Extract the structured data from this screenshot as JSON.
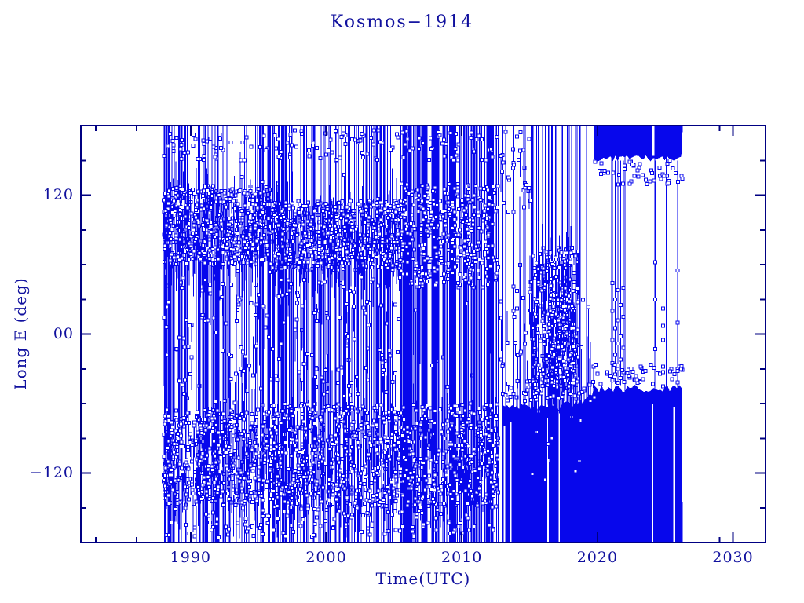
{
  "page": {
    "background": "#ffffff"
  },
  "chart_data": {
    "type": "scatter",
    "title": "Kosmos−1914",
    "xlabel": "Time(UTC)",
    "ylabel": "Long E (deg)",
    "marker": "open-square",
    "line_style": "vertical-wrap-lines",
    "xlim": [
      1981.9,
      2032.4
    ],
    "ylim": [
      -180,
      180
    ],
    "x_major_ticks": [
      1990,
      2000,
      2010,
      2020,
      2030
    ],
    "x_major_tick_labels": [
      "1990",
      "2000",
      "2010",
      "2020",
      "2030"
    ],
    "x_minor_ticks": [
      1983,
      1986,
      2029
    ],
    "y_major_ticks": [
      120,
      0,
      -120
    ],
    "y_major_tick_labels": [
      "120",
      "00",
      "−120"
    ],
    "y_minor_step": 30,
    "data_time_span_years": [
      1988.0,
      2026.3
    ],
    "colors": {
      "data": "#0707ec",
      "axis": "#000082",
      "text": "#10109e",
      "background": "#ffffff"
    },
    "seed": 1914,
    "structure": {
      "gaps": [
        [
          1993.0,
          1993.3
        ],
        [
          2004.95,
          2005.35
        ]
      ],
      "vline_eras": [
        {
          "years": [
            1988.0,
            1991.6
          ],
          "count": 55,
          "full_frac": 0.5,
          "up_start": [
            20,
            140
          ],
          "down_end": [
            -140,
            -20
          ]
        },
        {
          "years": [
            1991.6,
            1996.0
          ],
          "count": 45,
          "full_frac": 0.45,
          "up_start": [
            20,
            140
          ],
          "down_end": [
            -140,
            -20
          ]
        },
        {
          "years": [
            1996.0,
            2005.4
          ],
          "count": 110,
          "full_frac": 0.5,
          "up_start": [
            20,
            140
          ],
          "down_end": [
            -140,
            -20
          ]
        },
        {
          "years": [
            2005.4,
            2012.7
          ],
          "count": 160,
          "full_frac": 0.75,
          "up_start": [
            20,
            120
          ],
          "down_end": [
            -120,
            -15
          ]
        },
        {
          "years": [
            2012.7,
            2015.2
          ],
          "count": 9,
          "full_frac": 0.5,
          "up_start": [
            20,
            140
          ],
          "down_end": [
            -140,
            -20
          ]
        },
        {
          "years": [
            2015.2,
            2018.6
          ],
          "count": 40,
          "full_frac": 0.15,
          "up_start": [
            -40,
            70
          ],
          "down_end": [
            -140,
            -40
          ]
        },
        {
          "years": [
            2018.6,
            2019.75
          ],
          "count": 10,
          "full_frac": 0.2,
          "up_start": [
            -45,
            30
          ],
          "down_end": [
            -120,
            -50
          ]
        },
        {
          "years": [
            2019.75,
            2026.3
          ],
          "count": 6,
          "full_frac": 1.0,
          "up_start": [
            20,
            140
          ],
          "down_end": [
            -140,
            -20
          ]
        }
      ],
      "clusters": [
        {
          "years": [
            1988.0,
            1996.0
          ],
          "deg": [
            60,
            128
          ],
          "count": 600,
          "drop": true
        },
        {
          "years": [
            1988.0,
            1996.0
          ],
          "deg": [
            -148,
            -65
          ],
          "count": 500,
          "drop": true
        },
        {
          "years": [
            1988.0,
            1996.0
          ],
          "deg": [
            -60,
            55
          ],
          "count": 70,
          "drop": true
        },
        {
          "years": [
            1996.0,
            2005.4
          ],
          "deg": [
            55,
            115
          ],
          "count": 650,
          "drop": true
        },
        {
          "years": [
            1996.0,
            2005.4
          ],
          "deg": [
            -150,
            -60
          ],
          "count": 550,
          "drop": true
        },
        {
          "years": [
            1996.0,
            2005.4
          ],
          "deg": [
            -55,
            50
          ],
          "count": 90,
          "drop": true
        },
        {
          "years": [
            2005.4,
            2012.7
          ],
          "deg": [
            40,
            130
          ],
          "count": 420,
          "drop": false
        },
        {
          "years": [
            2005.4,
            2012.7
          ],
          "deg": [
            -150,
            -60
          ],
          "count": 380,
          "drop": true
        },
        {
          "years": [
            1988.0,
            2012.7
          ],
          "deg": [
            150,
            176
          ],
          "count": 150,
          "drop": false
        },
        {
          "years": [
            1988.0,
            2012.7
          ],
          "deg": [
            -176,
            -150
          ],
          "count": 120,
          "drop": false
        },
        {
          "years": [
            2012.8,
            2015.2
          ],
          "deg": [
            100,
            176
          ],
          "count": 28,
          "drop": true
        },
        {
          "years": [
            2012.8,
            2015.2
          ],
          "deg": [
            -30,
            55
          ],
          "count": 22,
          "drop": true
        },
        {
          "years": [
            2015.2,
            2018.6
          ],
          "deg": [
            -45,
            75
          ],
          "count": 270,
          "drop": true
        },
        {
          "years": [
            2016.4,
            2018.3
          ],
          "deg": [
            -42,
            35
          ],
          "count": 160,
          "drop": true
        },
        {
          "years": [
            2013.0,
            2019.8
          ],
          "deg": [
            -58,
            -40
          ],
          "count": 60,
          "drop": true
        },
        {
          "years": [
            2019.8,
            2026.3
          ],
          "deg": [
            128,
            150
          ],
          "count": 50,
          "drop": false
        },
        {
          "years": [
            2019.8,
            2026.3
          ],
          "deg": [
            -44,
            -26
          ],
          "count": 45,
          "drop": false
        }
      ],
      "blocks": [
        {
          "side": "bottom",
          "years": [
            2013.0,
            2026.3
          ],
          "jitter": 5,
          "edge_deg_points": [
            [
              2013,
              -64
            ],
            [
              2017.5,
              -62
            ],
            [
              2019.3,
              -55
            ],
            [
              2019.8,
              -47
            ],
            [
              2026.3,
              -46
            ]
          ],
          "slits": [
            [
              2013.08,
              2013.18
            ],
            [
              2013.55,
              2013.62
            ],
            [
              2016.3,
              2016.38
            ],
            [
              2017.1,
              2017.16
            ],
            [
              2024.0,
              2024.1
            ],
            [
              2025.6,
              2025.75
            ]
          ]
        },
        {
          "side": "top",
          "years": [
            2019.75,
            2026.3
          ],
          "jitter": 4,
          "edge_deg_points": [
            [
              2019.75,
              151
            ],
            [
              2022,
              152
            ],
            [
              2026.3,
              152
            ]
          ],
          "slits": [
            [
              2024.0,
              2024.25
            ]
          ]
        }
      ],
      "connectors": [
        {
          "year": 2021.12,
          "from_deg": 150,
          "to_deg": -42,
          "marker_degs": [
            44,
            20,
            -5,
            -25,
            -40
          ]
        },
        {
          "year": 2021.3,
          "from_deg": 150,
          "to_deg": -43,
          "marker_degs": [
            30,
            5,
            -18,
            -35
          ]
        },
        {
          "year": 2021.5,
          "from_deg": 150,
          "to_deg": -40,
          "marker_degs": [
            38,
            12,
            -8,
            -30,
            -42
          ]
        },
        {
          "year": 2021.72,
          "from_deg": 150,
          "to_deg": -44,
          "marker_degs": [
            25,
            -2,
            -22,
            -38
          ]
        },
        {
          "year": 2021.92,
          "from_deg": 150,
          "to_deg": -41,
          "marker_degs": [
            40,
            15,
            -12,
            -33
          ]
        },
        {
          "year": 2024.25,
          "from_deg": 150,
          "to_deg": -13,
          "marker_degs": [
            62,
            30,
            -13
          ]
        },
        {
          "year": 2024.85,
          "from_deg": 150,
          "to_deg": -49,
          "marker_degs": [
            22,
            7,
            -5,
            -28,
            -45
          ]
        },
        {
          "year": 2025.9,
          "from_deg": 150,
          "to_deg": -46,
          "marker_degs": [
            55,
            10,
            -30
          ]
        }
      ]
    }
  }
}
